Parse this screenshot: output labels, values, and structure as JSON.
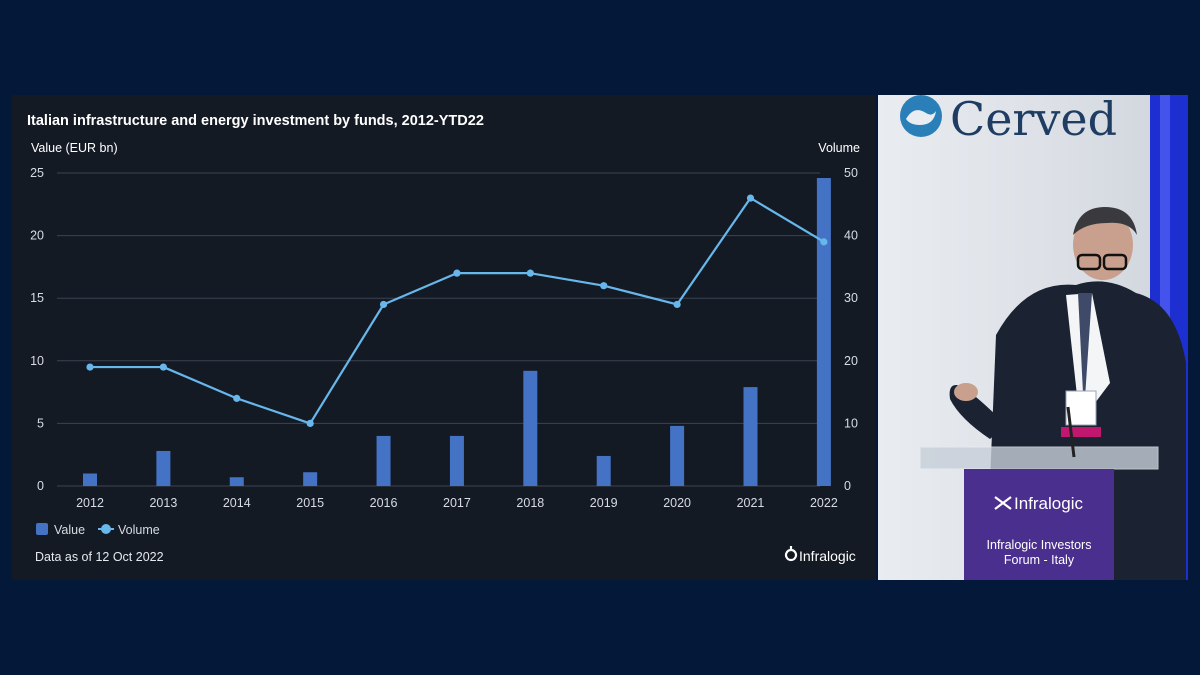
{
  "chart_data": {
    "type": "bar+line",
    "title": "Italian infrastructure and energy investment by funds, 2012-YTD22",
    "y_left_label": "Value (EUR bn)",
    "y_right_label": "Volume",
    "y_left_ticks": [
      "0",
      "5",
      "10",
      "15",
      "20",
      "25"
    ],
    "y_right_ticks": [
      "0",
      "10",
      "20",
      "30",
      "40",
      "50"
    ],
    "ylim_left": [
      0,
      25
    ],
    "ylim_right": [
      0,
      50
    ],
    "categories": [
      "2012",
      "2013",
      "2014",
      "2015",
      "2016",
      "2017",
      "2018",
      "2019",
      "2020",
      "2021",
      "2022"
    ],
    "series": [
      {
        "name": "Value",
        "type": "bar",
        "axis": "left",
        "color": "#4472c4",
        "values": [
          1.0,
          2.8,
          0.7,
          1.1,
          4.0,
          4.0,
          9.2,
          2.4,
          4.8,
          7.9,
          24.6
        ]
      },
      {
        "name": "Volume",
        "type": "line",
        "axis": "right",
        "color": "#67b7ec",
        "values": [
          19,
          19,
          14,
          10,
          29,
          34,
          34,
          32,
          29,
          46,
          39
        ]
      }
    ],
    "grid": true,
    "legend": "bottom-left",
    "note": "Data as of 12 Oct 2022",
    "source_logo": "Infralogic"
  },
  "video": {
    "sponsor_logo": "Cerved",
    "podium_logo": "Infralogic",
    "podium_line1": "Infralogic Investors",
    "podium_line2": "Forum - Italy"
  },
  "colors": {
    "background": "#04183a",
    "panel": "#141a24",
    "bar": "#4472c4",
    "line": "#67b7ec",
    "podium": "#4a2f8e",
    "cerved": "#1f3d63"
  }
}
